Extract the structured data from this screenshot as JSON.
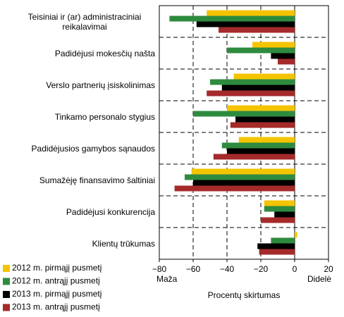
{
  "chart_data": {
    "type": "barh",
    "categories": [
      "Teisiniai ir (ar) administraciniai reikalavimai",
      "Padidėjusi mokesčių našta",
      "Verslo partnerių įsiskolinimas",
      "Tinkamo personalo stygius",
      "Padidėjusios gamybos sąnaudos",
      "Sumažėję finansavimo šaltiniai",
      "Padidėjusi konkurencija",
      "Klientų trūkumas"
    ],
    "series": [
      {
        "name": "2012 m. pirmąjį pusmetį",
        "color": "#f5c400",
        "values": [
          -52,
          -25,
          -36,
          -40,
          -33,
          -61,
          -18,
          1.5
        ]
      },
      {
        "name": "2012 m. antrąjį pusmetį",
        "color": "#2e8b3e",
        "values": [
          -74,
          -40,
          -50,
          -60,
          -43,
          -65,
          -18,
          -14
        ]
      },
      {
        "name": "2013 m. pirmąjį pusmetį",
        "color": "#000000",
        "values": [
          -58,
          -14,
          -43,
          -35,
          -40,
          -60,
          -12,
          -22
        ]
      },
      {
        "name": "2013 m. antrąjį pusmetį",
        "color": "#a52a2a",
        "values": [
          -45,
          -10,
          -52,
          -38,
          -48,
          -71,
          -20,
          -21
        ]
      }
    ],
    "xlim": [
      -80,
      20
    ],
    "xticks": [
      {
        "value": -80,
        "label": "−80"
      },
      {
        "value": -60,
        "label": "−60"
      },
      {
        "value": -40,
        "label": "−40"
      },
      {
        "value": -20,
        "label": "−20"
      },
      0,
      20
    ],
    "xlabel": "Procentų skirtumas",
    "annotations": [
      "Maža",
      "Didelė"
    ],
    "grid": true
  }
}
